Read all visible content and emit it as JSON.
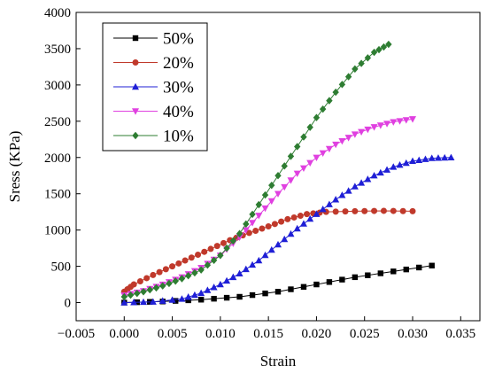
{
  "chart_data": {
    "type": "line",
    "title": "",
    "xlabel": "Strain",
    "ylabel": "Sress (KPa)",
    "xlim": [
      -0.005,
      0.037
    ],
    "ylim": [
      -250,
      4000
    ],
    "xticks": [
      -0.005,
      0.0,
      0.005,
      0.01,
      0.015,
      0.02,
      0.025,
      0.03,
      0.035
    ],
    "xtick_labels": [
      "−0.005",
      "0.000",
      "0.005",
      "0.010",
      "0.015",
      "0.020",
      "0.025",
      "0.030",
      "0.035"
    ],
    "yticks": [
      0,
      500,
      1000,
      1500,
      2000,
      2500,
      3000,
      3500,
      4000
    ],
    "ytick_labels": [
      "0",
      "500",
      "1000",
      "1500",
      "2000",
      "2500",
      "3000",
      "3500",
      "4000"
    ],
    "grid": false,
    "legend_position": "top-left",
    "series": [
      {
        "name": "50%",
        "color": "#000000",
        "marker": "square",
        "points": [
          [
            0.0,
            0
          ],
          [
            0.004,
            15
          ],
          [
            0.008,
            40
          ],
          [
            0.012,
            80
          ],
          [
            0.016,
            150
          ],
          [
            0.02,
            250
          ],
          [
            0.024,
            350
          ],
          [
            0.028,
            430
          ],
          [
            0.032,
            510
          ]
        ]
      },
      {
        "name": "20%",
        "color": "#c0392b",
        "marker": "circle",
        "points": [
          [
            0.0,
            150
          ],
          [
            0.001,
            250
          ],
          [
            0.003,
            380
          ],
          [
            0.005,
            500
          ],
          [
            0.007,
            620
          ],
          [
            0.009,
            740
          ],
          [
            0.011,
            860
          ],
          [
            0.013,
            960
          ],
          [
            0.015,
            1050
          ],
          [
            0.017,
            1150
          ],
          [
            0.019,
            1220
          ],
          [
            0.021,
            1250
          ],
          [
            0.024,
            1260
          ],
          [
            0.027,
            1265
          ],
          [
            0.03,
            1260
          ]
        ]
      },
      {
        "name": "30%",
        "color": "#1f1fd6",
        "marker": "triangle-up",
        "points": [
          [
            0.0,
            0
          ],
          [
            0.003,
            10
          ],
          [
            0.006,
            50
          ],
          [
            0.008,
            130
          ],
          [
            0.01,
            250
          ],
          [
            0.012,
            400
          ],
          [
            0.014,
            580
          ],
          [
            0.016,
            800
          ],
          [
            0.018,
            1020
          ],
          [
            0.02,
            1220
          ],
          [
            0.022,
            1420
          ],
          [
            0.024,
            1600
          ],
          [
            0.026,
            1750
          ],
          [
            0.028,
            1870
          ],
          [
            0.03,
            1950
          ],
          [
            0.032,
            1990
          ],
          [
            0.034,
            2000
          ]
        ]
      },
      {
        "name": "40%",
        "color": "#e040e0",
        "marker": "triangle-down",
        "points": [
          [
            0.0,
            100
          ],
          [
            0.002,
            160
          ],
          [
            0.004,
            250
          ],
          [
            0.006,
            350
          ],
          [
            0.008,
            480
          ],
          [
            0.01,
            650
          ],
          [
            0.012,
            900
          ],
          [
            0.014,
            1200
          ],
          [
            0.016,
            1500
          ],
          [
            0.018,
            1780
          ],
          [
            0.02,
            2000
          ],
          [
            0.022,
            2180
          ],
          [
            0.024,
            2320
          ],
          [
            0.026,
            2420
          ],
          [
            0.028,
            2490
          ],
          [
            0.03,
            2530
          ]
        ]
      },
      {
        "name": "10%",
        "color": "#2e7d32",
        "marker": "diamond",
        "points": [
          [
            0.0,
            80
          ],
          [
            0.002,
            150
          ],
          [
            0.004,
            230
          ],
          [
            0.006,
            330
          ],
          [
            0.008,
            450
          ],
          [
            0.01,
            650
          ],
          [
            0.012,
            950
          ],
          [
            0.014,
            1350
          ],
          [
            0.016,
            1750
          ],
          [
            0.018,
            2150
          ],
          [
            0.02,
            2550
          ],
          [
            0.022,
            2900
          ],
          [
            0.024,
            3220
          ],
          [
            0.026,
            3450
          ],
          [
            0.0275,
            3560
          ]
        ]
      }
    ]
  }
}
